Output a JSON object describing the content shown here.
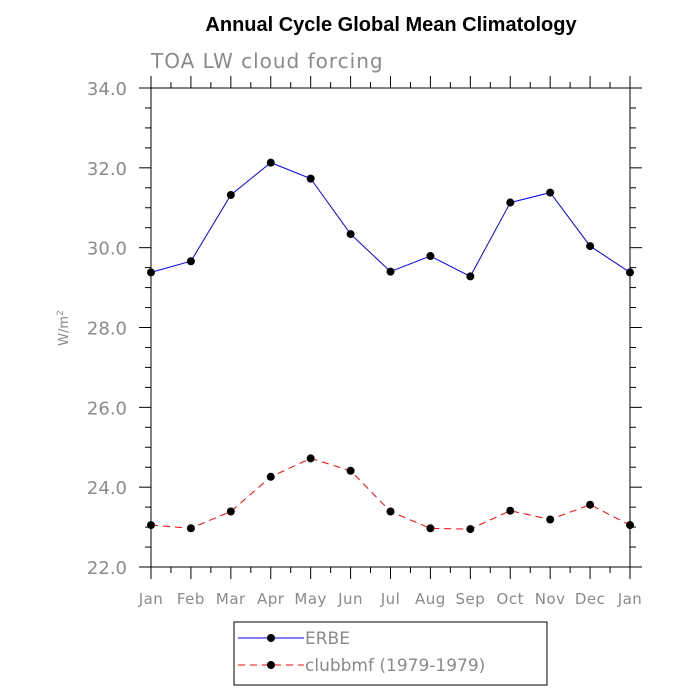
{
  "chart_data": {
    "type": "line",
    "title": "Annual Cycle Global Mean Climatology",
    "subtitle": "TOA LW cloud forcing",
    "ylabel": "W/m",
    "ylabel_sup": "2",
    "categories": [
      "Jan",
      "Feb",
      "Mar",
      "Apr",
      "May",
      "Jun",
      "Jul",
      "Aug",
      "Sep",
      "Oct",
      "Nov",
      "Dec",
      "Jan"
    ],
    "ylim": [
      22.0,
      34.0
    ],
    "yticks": [
      "22.0",
      "24.0",
      "26.0",
      "28.0",
      "30.0",
      "32.0",
      "34.0"
    ],
    "series": [
      {
        "name": "ERBE",
        "color": "#0000ff",
        "dash": "solid",
        "values": [
          29.38,
          29.66,
          31.32,
          32.13,
          31.73,
          30.34,
          29.4,
          29.79,
          29.28,
          31.13,
          31.38,
          30.04,
          29.38
        ]
      },
      {
        "name": "clubbmf (1979-1979)",
        "color": "#ff0000",
        "dash": "dashed",
        "values": [
          23.05,
          22.97,
          23.39,
          24.26,
          24.72,
          24.41,
          23.39,
          22.97,
          22.95,
          23.41,
          23.19,
          23.56,
          23.05
        ]
      }
    ],
    "legend_position": "bottom-center",
    "grid": false
  }
}
